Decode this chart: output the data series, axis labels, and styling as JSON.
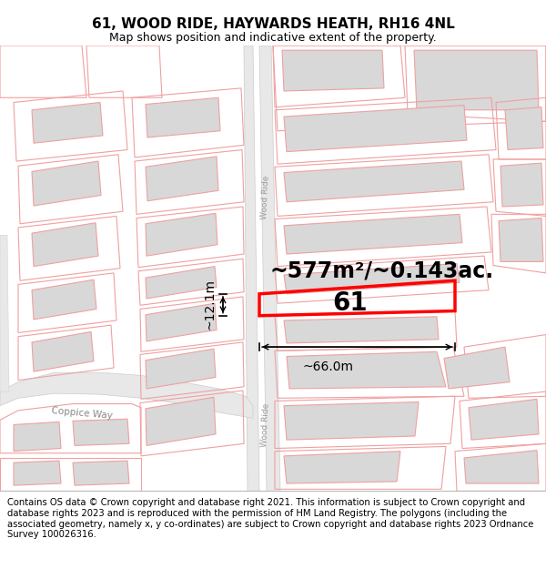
{
  "title": "61, WOOD RIDE, HAYWARDS HEATH, RH16 4NL",
  "subtitle": "Map shows position and indicative extent of the property.",
  "footer": "Contains OS data © Crown copyright and database right 2021. This information is subject to Crown copyright and database rights 2023 and is reproduced with the permission of HM Land Registry. The polygons (including the associated geometry, namely x, y co-ordinates) are subject to Crown copyright and database rights 2023 Ordnance Survey 100026316.",
  "area_label": "~577m²/~0.143ac.",
  "width_label": "~66.0m",
  "height_label": "~12.1m",
  "number_label": "61",
  "street_label_top": "Wood Ride",
  "street_label_bot": "Wood Ride",
  "coppice_way_label": "Coppice Way",
  "bg_color": "#ffffff",
  "map_bg": "#ffffff",
  "plot_outline_color": "#ff0000",
  "other_outline_color": "#f0a0a0",
  "building_fill": "#d8d8d8",
  "title_fontsize": 11,
  "subtitle_fontsize": 9,
  "footer_fontsize": 7.2
}
